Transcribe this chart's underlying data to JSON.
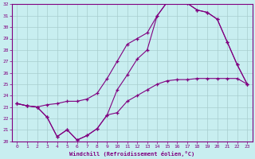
{
  "xlabel": "Windchill (Refroidissement éolien,°C)",
  "xlim": [
    -0.5,
    23.5
  ],
  "ylim": [
    20,
    32
  ],
  "yticks": [
    20,
    21,
    22,
    23,
    24,
    25,
    26,
    27,
    28,
    29,
    30,
    31,
    32
  ],
  "xticks": [
    0,
    1,
    2,
    3,
    4,
    5,
    6,
    7,
    8,
    9,
    10,
    11,
    12,
    13,
    14,
    15,
    16,
    17,
    18,
    19,
    20,
    21,
    22,
    23
  ],
  "bg_color": "#c8eef0",
  "line_color": "#800080",
  "grid_color": "#a8cece",
  "line1_x": [
    0,
    1,
    2,
    3,
    4,
    5,
    6,
    7,
    8,
    9,
    10,
    11,
    12,
    13,
    14,
    15,
    16,
    17,
    18,
    19,
    20,
    21,
    22,
    23
  ],
  "line1_y": [
    23.3,
    23.1,
    23.0,
    22.1,
    20.4,
    21.0,
    20.1,
    20.5,
    21.1,
    22.3,
    22.5,
    23.5,
    24.0,
    24.5,
    25.0,
    25.3,
    25.4,
    25.4,
    25.5,
    25.5,
    25.5,
    25.5,
    25.5,
    25.0
  ],
  "line2_x": [
    0,
    1,
    2,
    3,
    4,
    5,
    6,
    7,
    8,
    9,
    10,
    11,
    12,
    13,
    14,
    15,
    16,
    17,
    18,
    19,
    20,
    21,
    22,
    23
  ],
  "line2_y": [
    23.3,
    23.1,
    23.0,
    23.2,
    23.3,
    23.5,
    23.5,
    23.7,
    24.2,
    25.5,
    27.0,
    28.5,
    29.0,
    29.5,
    31.0,
    32.2,
    32.2,
    32.1,
    31.5,
    31.3,
    30.7,
    28.7,
    26.7,
    25.0
  ],
  "line3_x": [
    0,
    1,
    2,
    3,
    4,
    5,
    6,
    7,
    8,
    9,
    10,
    11,
    12,
    13,
    14,
    15,
    16,
    17,
    18,
    19,
    20,
    21,
    22,
    23
  ],
  "line3_y": [
    23.3,
    23.1,
    23.0,
    22.1,
    20.4,
    21.0,
    20.1,
    20.5,
    21.1,
    22.3,
    24.5,
    25.8,
    27.2,
    28.0,
    31.0,
    32.2,
    32.2,
    32.1,
    31.5,
    31.3,
    30.7,
    28.7,
    26.7,
    25.0
  ]
}
